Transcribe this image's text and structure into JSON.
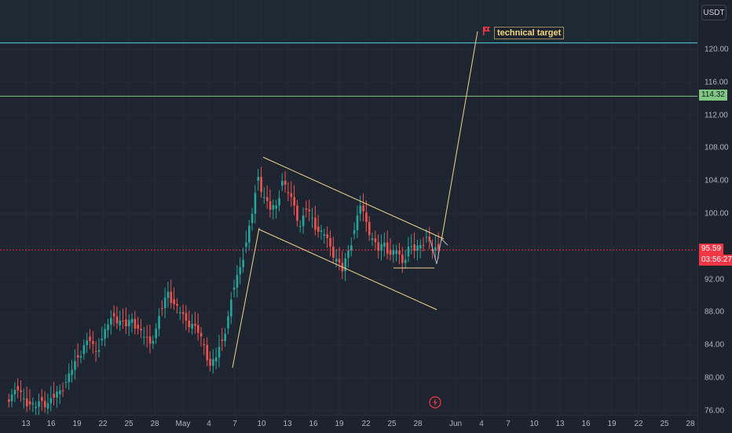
{
  "chart": {
    "currency": "USDT",
    "annotation": "technical target",
    "y_ticks": [
      "120.00",
      "116.00",
      "112.00",
      "108.00",
      "104.00",
      "100.00",
      "92.00",
      "88.00",
      "84.00",
      "80.00",
      "76.00"
    ],
    "x_ticks": [
      "13",
      "16",
      "19",
      "22",
      "25",
      "28",
      "May",
      "4",
      "7",
      "10",
      "13",
      "16",
      "19",
      "22",
      "25",
      "28",
      "Jun",
      "4",
      "7",
      "10",
      "13",
      "16",
      "19",
      "22",
      "25",
      "28"
    ],
    "horizontal_level_label": "114.32",
    "current_price": "95.59",
    "countdown": "03:56:27",
    "colors": {
      "up": "#26a69a",
      "down": "#ef5350",
      "drawing": "#f0d58a",
      "target_line": "#4dd0e1",
      "level_line": "#81c784",
      "current_price_bg": "#f23645"
    }
  },
  "chart_data": {
    "type": "candlestick",
    "y_range": [
      76,
      123
    ],
    "horizontal_lines": [
      {
        "value": 120.8,
        "color": "cyan"
      },
      {
        "value": 114.32,
        "color": "green"
      },
      {
        "value": 95.59,
        "color": "red-dotted"
      }
    ],
    "close_path": [
      [
        0,
        78.0
      ],
      [
        1,
        78.5
      ],
      [
        2,
        77.5
      ],
      [
        3,
        76.8
      ],
      [
        4,
        76.5
      ],
      [
        5,
        77.2
      ],
      [
        6,
        76.9
      ],
      [
        7,
        77.6
      ],
      [
        8,
        78.5
      ],
      [
        9,
        79.5
      ],
      [
        10,
        81.0
      ],
      [
        11,
        82.5
      ],
      [
        12,
        84.0
      ],
      [
        13,
        84.5
      ],
      [
        14,
        83.2
      ],
      [
        15,
        84.8
      ],
      [
        16,
        86.5
      ],
      [
        17,
        87.5
      ],
      [
        18,
        87.0
      ],
      [
        19,
        86.3
      ],
      [
        20,
        87.2
      ],
      [
        21,
        86.0
      ],
      [
        22,
        85.0
      ],
      [
        23,
        84.2
      ],
      [
        24,
        86.0
      ],
      [
        25,
        88.5
      ],
      [
        26,
        90.5
      ],
      [
        27,
        89.0
      ],
      [
        28,
        88.0
      ],
      [
        29,
        87.0
      ],
      [
        30,
        86.6
      ],
      [
        31,
        85.5
      ],
      [
        32,
        84.0
      ],
      [
        33,
        81.5
      ],
      [
        34,
        82.5
      ],
      [
        35,
        84.5
      ],
      [
        36,
        87.5
      ],
      [
        37,
        91.0
      ],
      [
        38,
        93.5
      ],
      [
        39,
        96.5
      ],
      [
        40,
        100.0
      ],
      [
        41,
        104.5
      ],
      [
        42,
        102.0
      ],
      [
        43,
        100.5
      ],
      [
        44,
        101.0
      ],
      [
        45,
        104.0
      ],
      [
        46,
        102.5
      ],
      [
        47,
        101.0
      ],
      [
        48,
        98.5
      ],
      [
        49,
        100.5
      ],
      [
        50,
        99.5
      ],
      [
        51,
        97.8
      ],
      [
        52,
        97.5
      ],
      [
        53,
        96.0
      ],
      [
        54,
        94.5
      ],
      [
        55,
        93.0
      ],
      [
        56,
        95.5
      ],
      [
        57,
        98.0
      ],
      [
        58,
        101.0
      ],
      [
        59,
        99.0
      ],
      [
        60,
        97.0
      ],
      [
        61,
        95.5
      ],
      [
        62,
        96.5
      ],
      [
        63,
        95.0
      ],
      [
        64,
        95.5
      ],
      [
        65,
        94.0
      ],
      [
        66,
        96.0
      ],
      [
        67,
        95.5
      ],
      [
        68,
        96.2
      ],
      [
        69,
        97.2
      ],
      [
        70,
        95.5
      ],
      [
        71,
        95.7
      ]
    ],
    "projection": [
      [
        72,
        96.6
      ],
      [
        73,
        94.0
      ],
      [
        74,
        96.3
      ],
      [
        75,
        121.5
      ]
    ]
  }
}
